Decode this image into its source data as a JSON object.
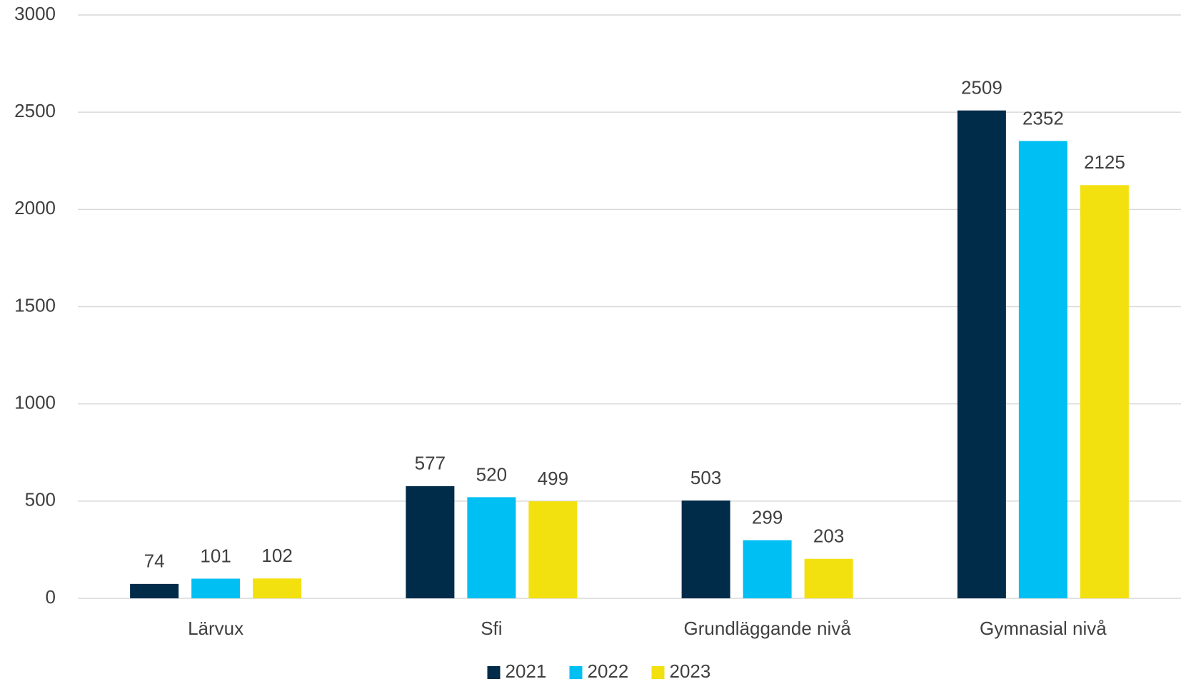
{
  "chart_data": {
    "type": "bar",
    "categories": [
      "Lärvux",
      "Sfi",
      "Grundläggande nivå",
      "Gymnasial nivå"
    ],
    "series": [
      {
        "name": "2021",
        "color": "#002b49",
        "values": [
          74,
          577,
          503,
          2509
        ]
      },
      {
        "name": "2022",
        "color": "#00bff3",
        "values": [
          101,
          520,
          299,
          2352
        ]
      },
      {
        "name": "2023",
        "color": "#f3e00f",
        "values": [
          102,
          499,
          203,
          2125
        ]
      }
    ],
    "ylim": [
      0,
      3000
    ],
    "yticks": [
      0,
      500,
      1000,
      1500,
      2000,
      2500,
      3000
    ],
    "grid": true,
    "legend": "bottom"
  }
}
